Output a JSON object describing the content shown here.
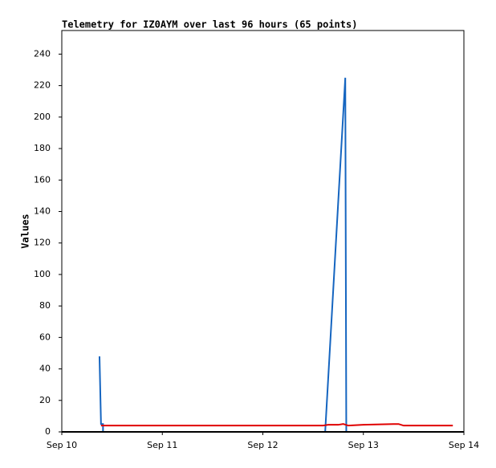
{
  "chart_data": {
    "type": "line",
    "title": "Telemetry for IZ0AYM over last 96 hours (65 points)",
    "y_label": "Values",
    "xlim": [
      10,
      14
    ],
    "xticks": [
      {
        "value": 10,
        "label": "Sep 10"
      },
      {
        "value": 11,
        "label": "Sep 11"
      },
      {
        "value": 12,
        "label": "Sep 12"
      },
      {
        "value": 13,
        "label": "Sep 13"
      },
      {
        "value": 14,
        "label": "Sep 14"
      }
    ],
    "ylim": [
      0,
      255
    ],
    "yticks": [
      0,
      20,
      40,
      60,
      80,
      100,
      120,
      140,
      160,
      180,
      200,
      220,
      240
    ],
    "series": [
      {
        "color": "#1565c0",
        "x": [
          10.375,
          10.39,
          10.41,
          10.41,
          12.62,
          12.82,
          12.83,
          13.89
        ],
        "values": [
          48,
          5,
          5,
          0,
          0,
          225,
          0,
          0
        ]
      },
      {
        "color": "#e00000",
        "x": [
          10.39,
          12.6,
          12.65,
          12.75,
          12.8,
          12.85,
          13.0,
          13.3,
          13.35,
          13.4,
          13.89
        ],
        "values": [
          4,
          4,
          4.5,
          4.5,
          5,
          4,
          4.5,
          5,
          5,
          4,
          4
        ]
      }
    ]
  }
}
